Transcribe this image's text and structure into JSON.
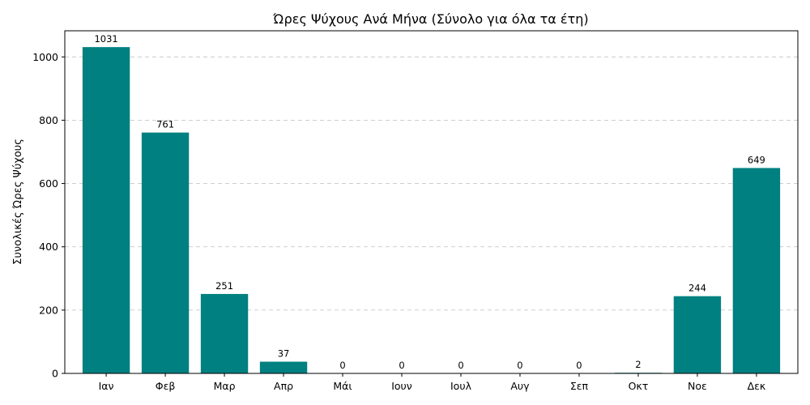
{
  "chart_data": {
    "type": "bar",
    "title": "Ώρες Ψύχους Ανά Μήνα (Σύνολο για όλα τα έτη)",
    "xlabel": "",
    "ylabel": "Συνολικές Ώρες Ψύχους",
    "categories": [
      "Ιαν",
      "Φεβ",
      "Μαρ",
      "Απρ",
      "Μάι",
      "Ιουν",
      "Ιουλ",
      "Αυγ",
      "Σεπ",
      "Οκτ",
      "Νοε",
      "Δεκ"
    ],
    "values": [
      1031,
      761,
      251,
      37,
      0,
      0,
      0,
      0,
      0,
      2,
      244,
      649
    ],
    "ylim": [
      0,
      1082.55
    ],
    "yticks": [
      0,
      200,
      400,
      600,
      800,
      1000
    ],
    "bar_color": "#008080",
    "grid": "horizontal dashed",
    "legend": "none"
  }
}
